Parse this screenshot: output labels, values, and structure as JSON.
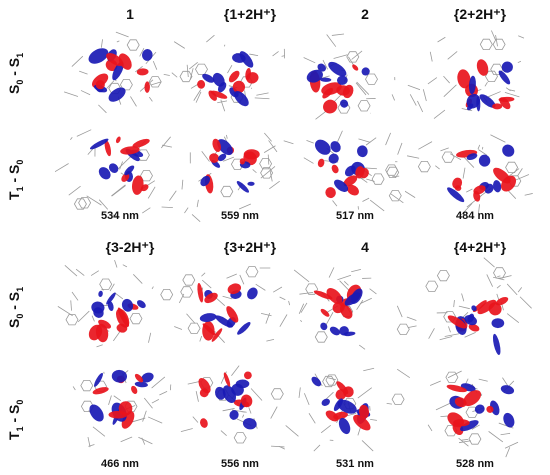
{
  "headers_top": [
    "1",
    "{1+2H⁺}",
    "2",
    "{2+2H⁺}"
  ],
  "headers_bottom": [
    "{3-2H⁺}",
    "{3+2H⁺}",
    "4",
    "{4+2H⁺}"
  ],
  "row_labels": {
    "s0s1_main": "S",
    "s0s1_sub0": "0",
    "s0s1_dash": " - S",
    "s0s1_sub1": "1",
    "t1s0_main": "T",
    "t1s0_sub1": "1",
    "t1s0_dash": " - S",
    "t1s0_sub0": "0"
  },
  "wavelengths_top": [
    "534 nm",
    "559 nm",
    "517 nm",
    "484 nm"
  ],
  "wavelengths_bottom": [
    "466 nm",
    "556 nm",
    "531 nm",
    "528 nm"
  ],
  "colors": {
    "red_lobe": "#e8141c",
    "blue_lobe": "#1a1ab4",
    "bond": "#9a9a9a"
  }
}
